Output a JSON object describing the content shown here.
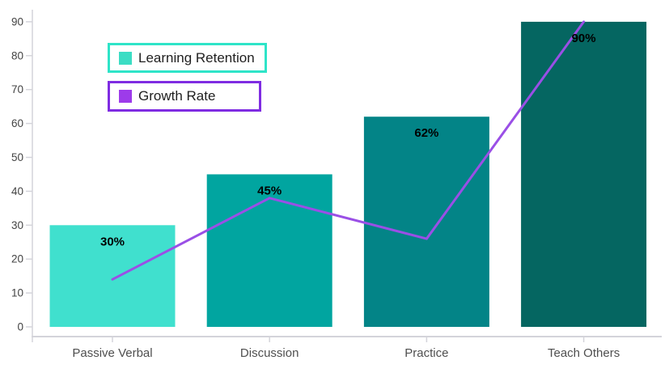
{
  "chart_data": {
    "type": "combo-bar-line",
    "title": "",
    "xlabel": "",
    "ylabel": "",
    "categories": [
      "Passive Verbal",
      "Discussion",
      "Practice",
      "Teach Others"
    ],
    "series": [
      {
        "name": "Learning Retention",
        "type": "bar",
        "values": [
          30,
          45,
          62,
          90
        ],
        "data_labels": [
          "30%",
          "45%",
          "62%",
          "90%"
        ],
        "bar_colors": [
          "#40E0CE",
          "#01A5A0",
          "#038487",
          "#056661"
        ]
      },
      {
        "name": "Growth Rate",
        "type": "line",
        "values": [
          14,
          38,
          26,
          90
        ],
        "color": "#9A4FE6"
      }
    ],
    "ylim": [
      0,
      90
    ],
    "ytick_labels": [
      "0",
      "10",
      "20",
      "30",
      "40",
      "50",
      "60",
      "70",
      "80",
      "90"
    ],
    "grid": false,
    "legend_position": "top-left"
  },
  "legend": {
    "items": [
      {
        "label": "Learning Retention",
        "swatch_color": "#3BDDC4",
        "border_color": "#2EE4C8"
      },
      {
        "label": "Growth Rate",
        "swatch_color": "#9D3BEA",
        "border_color": "#7F2CE2"
      }
    ]
  },
  "colors": {
    "axis_line": "#D4D4DA",
    "ytick_text": "#444444",
    "xlabel_text": "#4F4F4F",
    "bar_label_text": "#000000",
    "background": "#FFFFFF"
  }
}
